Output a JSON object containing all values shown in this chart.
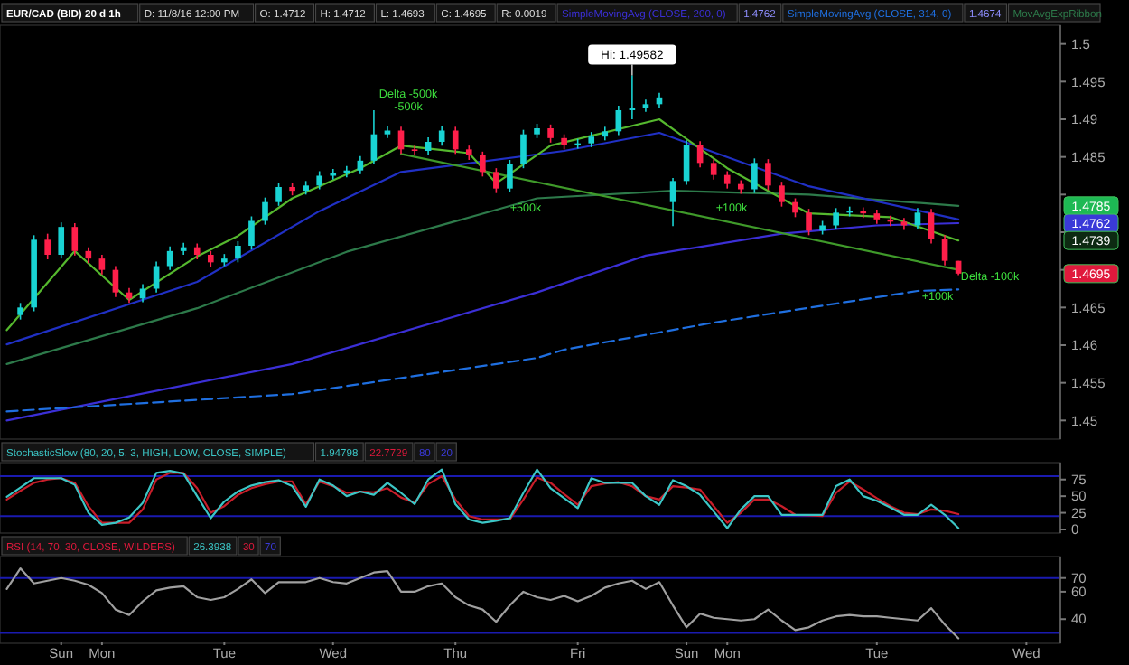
{
  "chart_data": [
    {
      "type": "candlestick",
      "title": "EUR/CAD (BID) 20 d 1h",
      "legend": "top",
      "categories": [
        null,
        null,
        null,
        null,
        null,
        null,
        null,
        null,
        null,
        null,
        null,
        null,
        null,
        null,
        null,
        null,
        null,
        null,
        null,
        null,
        null,
        null,
        null,
        null,
        null,
        null,
        null,
        null,
        null,
        null,
        null,
        null,
        null,
        null,
        null,
        null,
        null,
        null,
        null,
        null,
        null,
        null,
        null,
        null,
        null,
        null,
        null,
        null,
        null,
        null,
        null,
        null,
        null,
        null,
        null,
        null,
        null,
        null,
        null,
        null,
        null,
        null,
        null,
        null,
        null,
        null,
        null,
        null,
        null,
        null,
        null,
        null,
        null,
        null,
        null,
        null,
        null,
        null
      ],
      "ylim": [
        1.448,
        1.502
      ],
      "yticks": [
        1.45,
        1.455,
        1.46,
        1.465,
        {
          "value": 1.47,
          "label": null
        },
        {
          "value": 1.475,
          "label": null
        },
        {
          "value": 1.48,
          "label": null
        },
        1.485,
        1.49,
        1.495,
        1.5
      ],
      "ohlc": [
        null,
        [
          1.464,
          1.4656,
          1.4634,
          1.465
        ],
        [
          1.465,
          1.4746,
          1.4645,
          1.474
        ],
        [
          1.474,
          1.4748,
          1.4714,
          1.472
        ],
        [
          1.472,
          1.4763,
          1.4715,
          1.4757
        ],
        [
          1.4757,
          1.4762,
          1.4719,
          1.4725
        ],
        [
          1.4725,
          1.473,
          1.4709,
          1.4715
        ],
        [
          1.4715,
          1.472,
          1.4694,
          1.47
        ],
        [
          1.47,
          1.4705,
          1.4664,
          1.467
        ],
        [
          1.467,
          1.4676,
          1.4656,
          1.4662
        ],
        [
          1.4662,
          1.4681,
          1.4657,
          1.4675
        ],
        [
          1.4675,
          1.4711,
          1.467,
          1.4705
        ],
        [
          1.4705,
          1.4731,
          1.47,
          1.4725
        ],
        [
          1.4725,
          1.4736,
          1.472,
          1.473
        ],
        [
          1.473,
          1.4735,
          1.4714,
          1.472
        ],
        [
          1.472,
          1.4725,
          1.4704,
          1.471
        ],
        [
          1.471,
          1.4721,
          1.4705,
          1.4715
        ],
        [
          1.4715,
          1.4738,
          1.471,
          1.4732
        ],
        [
          1.4732,
          1.4771,
          1.4727,
          1.4765
        ],
        [
          1.4765,
          1.4796,
          1.476,
          1.479
        ],
        [
          1.479,
          1.4816,
          1.4785,
          1.481
        ],
        [
          1.481,
          1.4815,
          1.4799,
          1.4805
        ],
        [
          1.4805,
          1.4818,
          1.48,
          1.4812
        ],
        [
          1.4812,
          1.4831,
          1.4807,
          1.4825
        ],
        [
          1.4825,
          1.4834,
          1.482,
          1.4828
        ],
        [
          1.4828,
          1.4838,
          1.4823,
          1.4832
        ],
        [
          1.4832,
          1.4851,
          1.4827,
          1.4845
        ],
        [
          1.4845,
          1.4912,
          1.484,
          1.488
        ],
        [
          1.488,
          1.4891,
          1.4875,
          1.4885
        ],
        [
          1.4885,
          1.489,
          1.4854,
          1.486
        ],
        [
          1.486,
          1.4865,
          1.4852,
          1.4858
        ],
        [
          1.4858,
          1.4876,
          1.4853,
          1.487
        ],
        [
          1.487,
          1.4891,
          1.4865,
          1.4885
        ],
        [
          1.4885,
          1.489,
          1.4854,
          1.486
        ],
        [
          1.486,
          1.4865,
          1.4846,
          1.4852
        ],
        [
          1.4852,
          1.4857,
          1.4824,
          1.483
        ],
        [
          1.483,
          1.4835,
          1.4802,
          1.4808
        ],
        [
          1.4808,
          1.4846,
          1.4803,
          1.484
        ],
        [
          1.484,
          1.4886,
          1.4835,
          1.488
        ],
        [
          1.488,
          1.4894,
          1.4875,
          1.4888
        ],
        [
          1.4888,
          1.4893,
          1.4869,
          1.4875
        ],
        [
          1.4875,
          1.488,
          1.486,
          1.4866
        ],
        [
          1.4866,
          1.4874,
          1.4861,
          1.4868
        ],
        [
          1.4868,
          1.4883,
          1.4863,
          1.4877
        ],
        [
          1.4877,
          1.489,
          1.4872,
          1.4884
        ],
        [
          1.4884,
          1.4918,
          1.4879,
          1.4912
        ],
        [
          1.4912,
          1.49582,
          1.49,
          1.4915
        ],
        [
          1.4915,
          1.4926,
          1.491,
          1.492
        ],
        [
          1.492,
          1.4935,
          1.4915,
          1.4929
        ],
        [
          1.479,
          1.4822,
          1.4758,
          1.4818
        ],
        [
          1.4818,
          1.4872,
          1.4813,
          1.4866
        ],
        [
          1.4866,
          1.4871,
          1.4836,
          1.4842
        ],
        [
          1.4842,
          1.4847,
          1.482,
          1.4826
        ],
        [
          1.4826,
          1.4831,
          1.4808,
          1.4814
        ],
        [
          1.4814,
          1.4819,
          1.4801,
          1.4807
        ],
        [
          1.4807,
          1.4848,
          1.4802,
          1.4842
        ],
        [
          1.4842,
          1.4847,
          1.4806,
          1.4812
        ],
        [
          1.4812,
          1.4817,
          1.4784,
          1.479
        ],
        [
          1.479,
          1.4795,
          1.477,
          1.4776
        ],
        [
          1.4776,
          1.4781,
          1.4746,
          1.4752
        ],
        [
          1.4752,
          1.4765,
          1.4747,
          1.4759
        ],
        [
          1.4759,
          1.4782,
          1.4754,
          1.4776
        ],
        [
          1.4776,
          1.4784,
          1.4771,
          1.4778
        ],
        [
          1.4778,
          1.4783,
          1.4769,
          1.4775
        ],
        [
          1.4775,
          1.478,
          1.4761,
          1.4767
        ],
        [
          1.4767,
          1.4772,
          1.4758,
          1.4764
        ],
        [
          1.4764,
          1.4769,
          1.4753,
          1.4759
        ],
        [
          1.4759,
          1.4782,
          1.4754,
          1.4776
        ],
        [
          1.4776,
          1.4781,
          1.4735,
          1.4741
        ],
        [
          1.4741,
          1.4746,
          1.4706,
          1.4712
        ],
        [
          1.4712,
          1.4712,
          1.4693,
          1.4695
        ],
        null,
        null,
        null,
        null,
        null,
        null,
        null
      ],
      "series": [
        {
          "type": "line",
          "name": "SimpleMovingAvg (CLOSE, 200, 0)",
          "color": "#3b2fd6",
          "values": [
            1.45,
            null,
            null,
            null,
            null,
            null,
            null,
            null,
            null,
            null,
            null,
            null,
            null,
            null,
            null,
            null,
            null,
            null,
            null,
            null,
            null,
            1.4575,
            null,
            null,
            null,
            null,
            null,
            null,
            null,
            null,
            null,
            null,
            null,
            null,
            null,
            null,
            null,
            null,
            null,
            1.467,
            null,
            null,
            null,
            null,
            null,
            null,
            null,
            1.4719,
            null,
            null,
            null,
            null,
            null,
            null,
            null,
            null,
            null,
            1.4748,
            null,
            null,
            null,
            null,
            null,
            null,
            1.4759,
            null,
            null,
            null,
            null,
            null,
            1.4762,
            null,
            null,
            null,
            null,
            null,
            null,
            null
          ]
        },
        {
          "type": "line",
          "name": "SimpleMovingAvg (CLOSE, 314, 0)",
          "color": "#1f6fe0",
          "line_style": "dashed",
          "values": [
            1.4512,
            null,
            null,
            null,
            null,
            null,
            null,
            null,
            null,
            null,
            null,
            null,
            null,
            null,
            null,
            null,
            null,
            null,
            null,
            null,
            null,
            1.4535,
            null,
            null,
            null,
            null,
            null,
            null,
            null,
            null,
            null,
            null,
            null,
            null,
            null,
            null,
            null,
            null,
            null,
            1.4583,
            null,
            1.4594,
            null,
            null,
            null,
            null,
            null,
            null,
            null,
            null,
            null,
            null,
            1.463,
            null,
            null,
            null,
            null,
            null,
            null,
            null,
            null,
            null,
            null,
            null,
            null,
            null,
            null,
            1.4672,
            null,
            null,
            1.4674,
            null,
            null,
            null,
            null,
            null,
            null,
            null
          ]
        },
        {
          "type": "line",
          "name": "MovAvgExpRibbon",
          "color": "#2d7a4a",
          "values": [
            1.4575,
            null,
            null,
            null,
            null,
            null,
            null,
            null,
            null,
            null,
            null,
            null,
            null,
            null,
            1.4649,
            null,
            null,
            null,
            null,
            null,
            null,
            null,
            null,
            null,
            null,
            1.4724,
            null,
            null,
            null,
            null,
            null,
            null,
            null,
            null,
            null,
            null,
            null,
            null,
            null,
            1.4795,
            null,
            null,
            null,
            null,
            null,
            null,
            null,
            null,
            null,
            1.4805,
            null,
            null,
            null,
            null,
            null,
            null,
            null,
            null,
            null,
            1.48,
            null,
            null,
            null,
            null,
            null,
            null,
            null,
            null,
            null,
            null,
            1.4785,
            null,
            null,
            null,
            null,
            null,
            null,
            null
          ]
        },
        {
          "type": "line",
          "color": "#2030c4",
          "values": [
            1.4601,
            null,
            null,
            null,
            null,
            null,
            null,
            null,
            null,
            null,
            null,
            null,
            null,
            null,
            1.4684,
            null,
            null,
            null,
            null,
            null,
            null,
            null,
            null,
            1.4778,
            null,
            null,
            null,
            null,
            null,
            1.483,
            null,
            null,
            null,
            null,
            null,
            null,
            null,
            null,
            null,
            null,
            null,
            1.4858,
            null,
            null,
            null,
            null,
            null,
            null,
            1.4882,
            null,
            null,
            null,
            null,
            null,
            null,
            null,
            null,
            null,
            null,
            1.4811,
            null,
            null,
            null,
            null,
            null,
            null,
            null,
            null,
            null,
            null,
            1.4767,
            null,
            null,
            null,
            null,
            null,
            null,
            null
          ]
        },
        {
          "type": "line",
          "color": "#55b82e",
          "values": [
            1.462,
            null,
            null,
            null,
            null,
            1.4725,
            null,
            null,
            null,
            1.466,
            null,
            null,
            null,
            null,
            1.4718,
            null,
            null,
            1.4745,
            null,
            null,
            null,
            1.4795,
            null,
            null,
            null,
            null,
            1.4835,
            null,
            null,
            1.4865,
            null,
            null,
            null,
            null,
            1.4855,
            null,
            1.4815,
            null,
            null,
            null,
            1.4865,
            null,
            null,
            null,
            null,
            null,
            null,
            null,
            1.49,
            null,
            null,
            null,
            null,
            1.4835,
            null,
            null,
            null,
            null,
            null,
            1.4775,
            null,
            null,
            null,
            null,
            null,
            1.477,
            null,
            null,
            null,
            null,
            1.4739,
            null,
            null,
            null,
            null,
            null,
            null,
            null
          ]
        },
        {
          "type": "line",
          "color": "#3f9a2a",
          "values": [
            null,
            null,
            null,
            null,
            null,
            null,
            null,
            null,
            null,
            null,
            null,
            null,
            null,
            null,
            null,
            null,
            null,
            null,
            null,
            null,
            null,
            null,
            null,
            null,
            null,
            null,
            null,
            null,
            null,
            1.4854,
            null,
            null,
            null,
            null,
            null,
            null,
            null,
            null,
            null,
            null,
            null,
            null,
            null,
            null,
            null,
            null,
            null,
            null,
            null,
            null,
            null,
            null,
            null,
            null,
            null,
            null,
            null,
            null,
            null,
            null,
            null,
            null,
            null,
            null,
            null,
            null,
            null,
            null,
            null,
            null,
            1.47,
            null,
            null,
            null,
            null,
            null,
            null,
            null
          ]
        }
      ],
      "annotations": [
        "D: 11/8/16 12:00 PM",
        "O: 1.4712",
        "H: 1.4712",
        "L: 1.4693",
        "C: 1.4695",
        "R: 0.0019",
        "1.4762",
        "1.4674",
        "Hi: 1.49582",
        "Delta -500k",
        "-500k",
        "+500k",
        "+100k",
        "Delta -100k",
        "+100k",
        {
          "text": "1.4785",
          "y": 1.4785
        },
        {
          "text": "1.4762",
          "y": 1.4762
        },
        {
          "text": "1.4739",
          "y": 1.4739
        },
        {
          "text": "1.4695",
          "y": 1.4695
        }
      ]
    },
    {
      "type": "line",
      "title": "StochasticSlow (80, 20, 5, 3, HIGH, LOW, CLOSE, SIMPLE)",
      "categories": [
        null,
        null,
        null,
        null,
        null,
        null,
        null,
        null,
        null,
        null,
        null,
        null,
        null,
        null,
        null,
        null,
        null,
        null,
        null,
        null,
        null,
        null,
        null,
        null,
        null,
        null,
        null,
        null,
        null,
        null,
        null,
        null,
        null,
        null,
        null,
        null,
        null,
        null,
        null,
        null,
        null,
        null,
        null,
        null,
        null,
        null,
        null,
        null,
        null,
        null,
        null,
        null,
        null,
        null,
        null,
        null,
        null,
        null,
        null,
        null,
        null,
        null,
        null,
        null,
        null,
        null,
        null,
        null,
        null,
        null,
        null,
        null,
        null,
        null,
        null,
        null,
        null,
        null
      ],
      "ylim": [
        0,
        95
      ],
      "yticks": [
        0,
        25,
        50,
        75
      ],
      "ref_lines": [
        {
          "axis": "y",
          "value": 80,
          "color": "#1a1ab0"
        },
        {
          "axis": "y",
          "value": 20,
          "color": "#1a1ab0"
        }
      ],
      "series": [
        {
          "color": "#c81e2a",
          "values": [
            45,
            58,
            70,
            75,
            77,
            70,
            35,
            10,
            10,
            10,
            30,
            75,
            85,
            85,
            62,
            25,
            35,
            52,
            62,
            68,
            72,
            72,
            38,
            72,
            65,
            55,
            57,
            56,
            62,
            48,
            40,
            68,
            80,
            45,
            20,
            15,
            15,
            15,
            45,
            78,
            70,
            53,
            37,
            65,
            69,
            71,
            65,
            50,
            45,
            65,
            63,
            60,
            35,
            10,
            25,
            45,
            45,
            35,
            22,
            21,
            20,
            55,
            72,
            60,
            47,
            35,
            25,
            23,
            30,
            28,
            23,
            null,
            null,
            null,
            null,
            null,
            null,
            null
          ]
        },
        {
          "color": "#3cc6c6",
          "values": [
            49,
            63,
            77,
            77,
            77,
            67,
            25,
            7,
            10,
            18,
            40,
            85,
            88,
            84,
            50,
            17,
            42,
            57,
            66,
            71,
            74,
            65,
            34,
            75,
            66,
            50,
            57,
            52,
            70,
            55,
            38,
            75,
            90,
            38,
            15,
            10,
            13,
            17,
            55,
            90,
            62,
            47,
            32,
            77,
            70,
            70,
            70,
            50,
            37,
            74,
            65,
            52,
            27,
            2,
            30,
            50,
            50,
            22,
            22,
            22,
            22,
            65,
            75,
            50,
            43,
            33,
            22,
            22,
            37,
            22,
            2,
            null,
            null,
            null,
            null,
            null,
            null,
            null
          ]
        }
      ],
      "annotations": [
        "1.94798",
        "22.7729",
        "80",
        "20"
      ]
    },
    {
      "type": "line",
      "title": "RSI (14, 70, 30, CLOSE, WILDERS)",
      "categories": [
        null,
        null,
        null,
        null,
        "Sun",
        null,
        null,
        "Mon",
        null,
        null,
        null,
        null,
        null,
        null,
        null,
        null,
        "Tue",
        null,
        null,
        null,
        null,
        null,
        null,
        null,
        "Wed",
        null,
        null,
        null,
        null,
        null,
        null,
        null,
        null,
        "Thu",
        null,
        null,
        null,
        null,
        null,
        null,
        null,
        null,
        "Fri",
        null,
        null,
        null,
        null,
        null,
        null,
        null,
        "Sun",
        null,
        null,
        "Mon",
        null,
        null,
        null,
        null,
        null,
        null,
        null,
        null,
        null,
        null,
        "Tue",
        null,
        null,
        null,
        null,
        null,
        null,
        null,
        null,
        null,
        null,
        "Wed",
        null,
        null
      ],
      "ylim": [
        25,
        83
      ],
      "yticks": [
        40,
        60,
        70
      ],
      "ref_lines": [
        {
          "axis": "y",
          "value": 70,
          "color": "#1a1ab0"
        },
        {
          "axis": "y",
          "value": 30,
          "color": "#1a1ab0"
        }
      ],
      "series": [
        {
          "color": "#a0a0a0",
          "values": [
            62,
            77,
            66,
            68,
            70,
            68,
            65,
            59,
            47,
            43,
            53,
            61,
            63,
            64,
            56,
            54,
            56,
            62,
            69,
            59,
            67,
            67,
            67,
            70,
            67,
            66,
            70,
            74,
            75,
            60,
            60,
            64,
            66,
            56,
            50,
            47,
            38,
            50,
            60,
            56,
            54,
            57,
            53,
            57,
            63,
            66,
            68,
            62,
            67,
            50,
            34,
            44,
            41,
            40,
            39,
            40,
            47,
            39,
            32,
            34,
            39,
            42,
            43,
            42,
            42,
            41,
            40,
            39,
            48,
            36,
            26,
            null,
            null,
            null,
            null,
            null,
            null,
            null
          ]
        }
      ],
      "annotations": [
        "26.3938",
        "30",
        "70"
      ]
    }
  ]
}
